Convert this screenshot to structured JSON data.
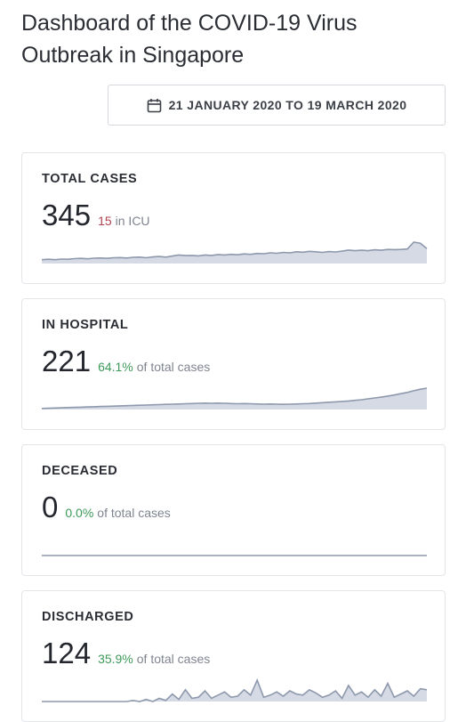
{
  "header": {
    "title": "Dashboard of the COVID-19 Virus Outbreak in Singapore"
  },
  "date_range": {
    "label": "21 JANUARY 2020 TO 19 MARCH 2020",
    "icon": "calendar-icon"
  },
  "colors": {
    "red_accent": "#b0414f",
    "green_accent": "#3e9a5a",
    "sparkline_stroke": "#8e99ad",
    "sparkline_fill": "#d5dae4"
  },
  "cards": [
    {
      "label": "TOTAL CASES",
      "value": "345",
      "highlight": "15",
      "suffix": "in ICU",
      "spark": [
        0.18,
        0.2,
        0.18,
        0.21,
        0.2,
        0.23,
        0.24,
        0.22,
        0.25,
        0.26,
        0.24,
        0.27,
        0.28,
        0.26,
        0.29,
        0.3,
        0.27,
        0.31,
        0.33,
        0.3,
        0.35,
        0.4,
        0.37,
        0.38,
        0.36,
        0.4,
        0.38,
        0.42,
        0.4,
        0.43,
        0.41,
        0.45,
        0.43,
        0.47,
        0.46,
        0.5,
        0.48,
        0.52,
        0.5,
        0.55,
        0.53,
        0.57,
        0.55,
        0.52,
        0.56,
        0.54,
        0.58,
        0.63,
        0.6,
        0.62,
        0.6,
        0.64,
        0.62,
        0.66,
        0.65,
        0.66,
        0.68,
        1.0,
        0.95,
        0.7
      ]
    },
    {
      "label": "IN HOSPITAL",
      "value": "221",
      "highlight": "64.1%",
      "suffix": "of total cases",
      "spark": [
        0.05,
        0.06,
        0.07,
        0.08,
        0.09,
        0.1,
        0.11,
        0.12,
        0.13,
        0.14,
        0.15,
        0.16,
        0.17,
        0.18,
        0.19,
        0.2,
        0.21,
        0.22,
        0.23,
        0.24,
        0.25,
        0.26,
        0.27,
        0.28,
        0.29,
        0.3,
        0.29,
        0.3,
        0.29,
        0.28,
        0.27,
        0.28,
        0.27,
        0.26,
        0.25,
        0.26,
        0.25,
        0.24,
        0.25,
        0.26,
        0.27,
        0.28,
        0.3,
        0.32,
        0.34,
        0.36,
        0.38,
        0.4,
        0.43,
        0.46,
        0.5,
        0.54,
        0.58,
        0.63,
        0.68,
        0.74,
        0.8,
        0.88,
        0.95,
        1.0
      ]
    },
    {
      "label": "DECEASED",
      "value": "0",
      "highlight": "0.0%",
      "suffix": "of total cases",
      "spark": [
        0,
        0,
        0,
        0,
        0,
        0,
        0,
        0,
        0,
        0,
        0,
        0,
        0,
        0,
        0,
        0,
        0,
        0,
        0,
        0,
        0,
        0,
        0,
        0,
        0,
        0,
        0,
        0,
        0,
        0,
        0,
        0,
        0,
        0,
        0,
        0,
        0,
        0,
        0,
        0,
        0,
        0,
        0,
        0,
        0,
        0,
        0,
        0,
        0,
        0,
        0,
        0,
        0,
        0,
        0,
        0,
        0,
        0,
        0,
        0
      ]
    },
    {
      "label": "DISCHARGED",
      "value": "124",
      "highlight": "35.9%",
      "suffix": "of total cases",
      "spark": [
        0,
        0,
        0,
        0,
        0,
        0,
        0,
        0,
        0,
        0,
        0,
        0,
        0,
        0,
        0.05,
        0.0,
        0.1,
        0.0,
        0.15,
        0.05,
        0.35,
        0.1,
        0.55,
        0.15,
        0.2,
        0.5,
        0.15,
        0.3,
        0.45,
        0.2,
        0.25,
        0.55,
        0.3,
        1.0,
        0.2,
        0.3,
        0.45,
        0.25,
        0.5,
        0.35,
        0.3,
        0.55,
        0.4,
        0.2,
        0.3,
        0.5,
        0.15,
        0.75,
        0.3,
        0.45,
        0.2,
        0.55,
        0.25,
        0.85,
        0.2,
        0.35,
        0.5,
        0.25,
        0.6,
        0.55
      ]
    }
  ]
}
